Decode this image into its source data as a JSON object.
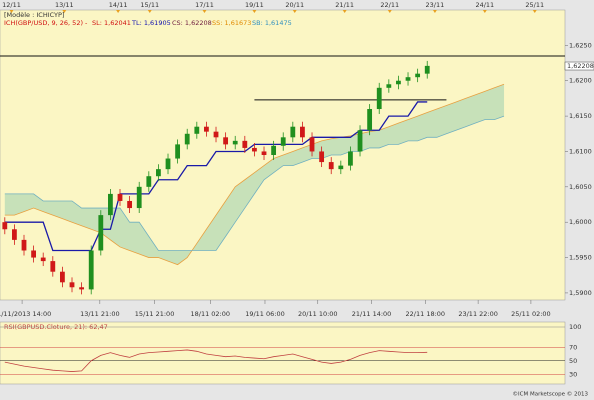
{
  "chart_data": [
    {
      "type": "candlestick",
      "title": "[Modèle : ICHICYP]",
      "indicator": "ICH(GBP/USD, 9, 26, 52) -",
      "stats": [
        {
          "label": "SL: 1,62041",
          "color": "#d01010"
        },
        {
          "label": "TL: 1,61905",
          "color": "#1010b0"
        },
        {
          "label": "CS: 1,62208",
          "color": "#702040"
        },
        {
          "label": "SS: 1,61673",
          "color": "#e08a00"
        },
        {
          "label": "SB: 1,61475",
          "color": "#3090c0"
        }
      ],
      "open": [
        1.6,
        1.599,
        1.5975,
        1.596,
        1.595,
        1.5945,
        1.593,
        1.5915,
        1.5908,
        1.5905,
        1.596,
        1.601,
        1.604,
        1.603,
        1.602,
        1.605,
        1.6065,
        1.6075,
        1.609,
        1.611,
        1.6125,
        1.6135,
        1.6128,
        1.612,
        1.611,
        1.6115,
        1.6105,
        1.61,
        1.6095,
        1.6108,
        1.612,
        1.6135,
        1.612,
        1.61,
        1.6085,
        1.6075,
        1.608,
        1.61,
        1.613,
        1.616,
        1.619,
        1.6195,
        1.62,
        1.6205,
        1.621
      ],
      "high": [
        1.6007,
        1.5997,
        1.5982,
        1.5967,
        1.5957,
        1.5952,
        1.5937,
        1.5922,
        1.5915,
        1.5967,
        1.6017,
        1.6047,
        1.6047,
        1.6037,
        1.6057,
        1.6072,
        1.6082,
        1.6097,
        1.6117,
        1.6132,
        1.6142,
        1.6142,
        1.6135,
        1.6127,
        1.6122,
        1.6122,
        1.6112,
        1.6107,
        1.6115,
        1.6127,
        1.6142,
        1.6142,
        1.6127,
        1.6107,
        1.6092,
        1.6087,
        1.6107,
        1.6137,
        1.6167,
        1.6197,
        1.6202,
        1.6207,
        1.6212,
        1.6217,
        1.6228
      ],
      "low": [
        1.5983,
        1.5968,
        1.5953,
        1.5943,
        1.5938,
        1.5923,
        1.5908,
        1.5901,
        1.5898,
        1.5898,
        1.5953,
        1.6003,
        1.6023,
        1.6013,
        1.6013,
        1.6043,
        1.6058,
        1.6068,
        1.6083,
        1.6103,
        1.6118,
        1.6121,
        1.6113,
        1.6103,
        1.6103,
        1.6098,
        1.6093,
        1.6088,
        1.6088,
        1.6101,
        1.6113,
        1.6113,
        1.6093,
        1.6078,
        1.6068,
        1.6068,
        1.6073,
        1.6093,
        1.6123,
        1.6153,
        1.6183,
        1.6188,
        1.6193,
        1.6198,
        1.6203
      ],
      "close": [
        1.599,
        1.5975,
        1.596,
        1.595,
        1.5945,
        1.593,
        1.5915,
        1.5908,
        1.5905,
        1.596,
        1.601,
        1.604,
        1.603,
        1.602,
        1.605,
        1.6065,
        1.6075,
        1.609,
        1.611,
        1.6125,
        1.6135,
        1.6128,
        1.612,
        1.611,
        1.6115,
        1.6105,
        1.61,
        1.6095,
        1.6108,
        1.612,
        1.6135,
        1.612,
        1.61,
        1.6085,
        1.6075,
        1.608,
        1.61,
        1.613,
        1.616,
        1.619,
        1.6195,
        1.62,
        1.6205,
        1.621,
        1.6221
      ],
      "up_color": "#1f8f1f",
      "down_color": "#d01818",
      "kijun": {
        "color": "#1a1aa8",
        "values": [
          1.6,
          1.6,
          1.6,
          1.6,
          1.6,
          1.596,
          1.596,
          1.596,
          1.596,
          1.596,
          1.599,
          1.599,
          1.604,
          1.604,
          1.604,
          1.604,
          1.606,
          1.606,
          1.606,
          1.608,
          1.608,
          1.608,
          1.61,
          1.61,
          1.61,
          1.61,
          1.611,
          1.611,
          1.611,
          1.611,
          1.611,
          1.611,
          1.612,
          1.612,
          1.612,
          1.612,
          1.612,
          1.613,
          1.613,
          1.613,
          1.615,
          1.615,
          1.615,
          1.617,
          1.617
        ]
      },
      "span_a": {
        "color": "#e8a040",
        "values": [
          1.601,
          1.601,
          1.6015,
          1.602,
          1.6015,
          1.601,
          1.6005,
          1.6,
          1.5995,
          1.599,
          1.5985,
          1.5975,
          1.5965,
          1.596,
          1.5955,
          1.595,
          1.595,
          1.5945,
          1.594,
          1.595,
          1.597,
          1.599,
          1.601,
          1.603,
          1.605,
          1.606,
          1.607,
          1.608,
          1.609,
          1.6095,
          1.61,
          1.6105,
          1.611,
          1.6115,
          1.6118,
          1.612,
          1.6122,
          1.6125,
          1.6128,
          1.613,
          1.6135,
          1.614,
          1.6145,
          1.615,
          1.6155,
          1.616,
          1.6165,
          1.617,
          1.6175,
          1.618,
          1.6185,
          1.619,
          1.6195
        ]
      },
      "span_b": {
        "color": "#70b0c0",
        "values": [
          1.604,
          1.604,
          1.604,
          1.604,
          1.603,
          1.603,
          1.603,
          1.603,
          1.602,
          1.602,
          1.602,
          1.602,
          1.602,
          1.6,
          1.6,
          1.598,
          1.596,
          1.596,
          1.596,
          1.596,
          1.596,
          1.596,
          1.596,
          1.598,
          1.6,
          1.602,
          1.604,
          1.606,
          1.607,
          1.608,
          1.608,
          1.6085,
          1.609,
          1.609,
          1.6095,
          1.6095,
          1.61,
          1.61,
          1.6105,
          1.6105,
          1.611,
          1.611,
          1.6115,
          1.6115,
          1.612,
          1.612,
          1.6125,
          1.613,
          1.6135,
          1.614,
          1.6145,
          1.6145,
          1.615
        ]
      },
      "cloud_color": "#9ccfb0",
      "hlines": [
        {
          "value": 1.6235
        },
        {
          "value": 1.6173,
          "from": 26,
          "to": 46
        }
      ],
      "last_price": {
        "value": 1.62208,
        "label": "1,62208"
      },
      "xlim": [
        -0.5,
        58.35
      ],
      "ylim": [
        1.589,
        1.63
      ],
      "yticks": [
        {
          "value": 1.59,
          "label": "1,5900"
        },
        {
          "value": 1.595,
          "label": "1,5950"
        },
        {
          "value": 1.6,
          "label": "1,6000"
        },
        {
          "value": 1.605,
          "label": "1,6050"
        },
        {
          "value": 1.61,
          "label": "1,6100"
        },
        {
          "value": 1.615,
          "label": "1,6150"
        },
        {
          "value": 1.62,
          "label": "1,6200"
        },
        {
          "value": 1.625,
          "label": "1,6250"
        }
      ],
      "top_dates": [
        {
          "value": 0.7,
          "label": "12/11"
        },
        {
          "value": 6.2,
          "label": "13/11"
        },
        {
          "value": 11.8,
          "label": "14/11"
        },
        {
          "value": 15.1,
          "label": "15/11"
        },
        {
          "value": 20.8,
          "label": "17/11"
        },
        {
          "value": 26.0,
          "label": "19/11"
        },
        {
          "value": 30.2,
          "label": "20/11"
        },
        {
          "value": 35.4,
          "label": "21/11"
        },
        {
          "value": 40.1,
          "label": "22/11"
        },
        {
          "value": 44.8,
          "label": "23/11"
        },
        {
          "value": 50.0,
          "label": "24/11"
        },
        {
          "value": 55.2,
          "label": "25/11"
        }
      ],
      "xticks": [
        {
          "value": 1.8,
          "label": "11/11/2013 14:00"
        },
        {
          "value": 9.9,
          "label": "13/11 21:00"
        },
        {
          "value": 15.6,
          "label": "15/11 21:00"
        },
        {
          "value": 21.4,
          "label": "18/11 02:00"
        },
        {
          "value": 27.1,
          "label": "19/11 06:00"
        },
        {
          "value": 32.6,
          "label": "20/11 10:00"
        },
        {
          "value": 38.2,
          "label": "21/11 14:00"
        },
        {
          "value": 43.8,
          "label": "22/11 18:00"
        },
        {
          "value": 49.3,
          "label": "23/11 22:00"
        },
        {
          "value": 54.8,
          "label": "25/11 02:00"
        }
      ]
    },
    {
      "type": "line",
      "title": "RSI(GBPUSD.Cloture, 21): 62,47",
      "color": "#c04040",
      "values": [
        48,
        45,
        42,
        40,
        38,
        36,
        35,
        34,
        35,
        50,
        58,
        62,
        58,
        55,
        60,
        62,
        63,
        64,
        65,
        66,
        64,
        60,
        58,
        56,
        57,
        55,
        54,
        53,
        56,
        58,
        60,
        56,
        52,
        48,
        46,
        48,
        52,
        58,
        62,
        65,
        64,
        63,
        62,
        62,
        62.47
      ],
      "ylim": [
        20,
        100
      ],
      "yticks": [
        30,
        50,
        70,
        100
      ],
      "tick_colors": [
        "#d04040",
        "#222222",
        "#d04040",
        "#888888"
      ]
    }
  ],
  "footer": "©ICM Marketscope © 2013"
}
